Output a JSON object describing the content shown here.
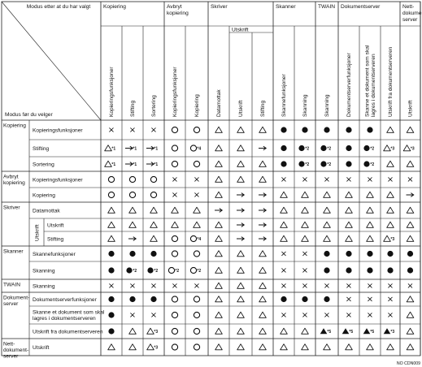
{
  "header": {
    "corner_top": "Modus etter at du har valgt",
    "corner_bottom": "Modus før du velger",
    "groups": [
      {
        "id": "kop",
        "label_lines": [
          "Kopiering"
        ]
      },
      {
        "id": "avb",
        "label_lines": [
          "Avbryt",
          "kopiering"
        ]
      },
      {
        "id": "skr",
        "label_lines": [
          "Skriver"
        ],
        "sub": "Utskrift"
      },
      {
        "id": "ska",
        "label_lines": [
          "Skanner"
        ]
      },
      {
        "id": "twa",
        "label_lines": [
          "TWAIN"
        ]
      },
      {
        "id": "dok",
        "label_lines": [
          "Dokumentserver"
        ]
      },
      {
        "id": "net",
        "label_lines": [
          "Nett-",
          "dokument-",
          "server"
        ]
      }
    ],
    "columns": [
      {
        "lines": [
          "Kopieringsfunksjoner"
        ]
      },
      {
        "lines": [
          "Stifting"
        ]
      },
      {
        "lines": [
          "Sortering"
        ]
      },
      {
        "lines": [
          "Kopieringsfunksjoner"
        ]
      },
      {
        "lines": [
          "Kopiering"
        ]
      },
      {
        "lines": [
          "Datamottak"
        ]
      },
      {
        "lines": [
          "Utskrift"
        ]
      },
      {
        "lines": [
          "Stifting"
        ]
      },
      {
        "lines": [
          "Skannefunksjoner"
        ]
      },
      {
        "lines": [
          "Skanning"
        ]
      },
      {
        "lines": [
          "Skanning"
        ]
      },
      {
        "lines": [
          "Dokumentserverfunksjoner"
        ]
      },
      {
        "lines": [
          "Skanne et dokument som skal",
          "lagres i dokumentserveren"
        ]
      },
      {
        "lines": [
          "Utskrift fra dokumentserveren"
        ]
      },
      {
        "lines": [
          "Utskrift"
        ]
      }
    ]
  },
  "rows": [
    {
      "group": "Kopiering",
      "sub": "",
      "label": [
        "Kopieringsfunksjoner"
      ],
      "cells": [
        "x",
        "x",
        "x",
        "o",
        "o",
        "a",
        "a",
        "a",
        "d",
        "d",
        "d",
        "d",
        "d",
        "a",
        "a"
      ],
      "sups": {}
    },
    {
      "group": "",
      "sub": "",
      "label": [
        "Stifting"
      ],
      "cells": [
        "a",
        "r",
        "r",
        "o",
        "o",
        "a",
        "a",
        "r",
        "d",
        "d",
        "d",
        "d",
        "d",
        "a",
        "a"
      ],
      "sups": {
        "0": "*1",
        "1": "*1",
        "2": "*1",
        "4": "*4",
        "9": "*2",
        "10": "*2",
        "12": "*2",
        "13": "*3",
        "14": "*3"
      }
    },
    {
      "group": "",
      "sub": "",
      "label": [
        "Sortering"
      ],
      "cells": [
        "a",
        "r",
        "r",
        "o",
        "o",
        "a",
        "a",
        "a",
        "d",
        "d",
        "d",
        "d",
        "d",
        "a",
        "a"
      ],
      "sups": {
        "0": "*1",
        "1": "*1",
        "2": "*1",
        "9": "*2",
        "10": "*2",
        "12": "*2"
      }
    },
    {
      "group": "Avbryt kopiering",
      "sub": "",
      "label": [
        "Kopieringsfunksjoner"
      ],
      "cells": [
        "o",
        "o",
        "o",
        "x",
        "x",
        "a",
        "a",
        "a",
        "x",
        "x",
        "x",
        "x",
        "x",
        "x",
        "x"
      ],
      "sups": {}
    },
    {
      "group": "",
      "sub": "",
      "label": [
        "Kopiering"
      ],
      "cells": [
        "o",
        "o",
        "o",
        "x",
        "x",
        "a",
        "r",
        "r",
        "a",
        "a",
        "a",
        "a",
        "a",
        "a",
        "r"
      ],
      "sups": {}
    },
    {
      "group": "Skriver",
      "sub": "",
      "label": [
        "Datamottak"
      ],
      "cells": [
        "a",
        "a",
        "a",
        "a",
        "a",
        "r",
        "r",
        "r",
        "a",
        "a",
        "a",
        "a",
        "a",
        "a",
        "a"
      ],
      "sups": {}
    },
    {
      "group": "",
      "sub": "Utskrift",
      "label": [
        "Utskrift"
      ],
      "cells": [
        "a",
        "a",
        "a",
        "a",
        "a",
        "a",
        "r",
        "r",
        "a",
        "a",
        "a",
        "a",
        "a",
        "a",
        "a"
      ],
      "sups": {}
    },
    {
      "group": "",
      "sub": "",
      "label": [
        "Stifting"
      ],
      "cells": [
        "a",
        "r",
        "a",
        "o",
        "o",
        "a",
        "r",
        "r",
        "a",
        "a",
        "a",
        "a",
        "a",
        "a",
        "a"
      ],
      "sups": {
        "4": "*4",
        "13": "*3"
      }
    },
    {
      "group": "Skanner",
      "sub": "",
      "label": [
        "Skannefunksjoner"
      ],
      "cells": [
        "d",
        "d",
        "d",
        "o",
        "o",
        "a",
        "a",
        "a",
        "x",
        "x",
        "d",
        "d",
        "d",
        "d",
        "d"
      ],
      "sups": {}
    },
    {
      "group": "",
      "sub": "",
      "label": [
        "Skanning"
      ],
      "cells": [
        "d",
        "d",
        "d",
        "o",
        "o",
        "a",
        "a",
        "a",
        "x",
        "x",
        "d",
        "d",
        "d",
        "d",
        "d"
      ],
      "sups": {
        "1": "*2",
        "2": "*2",
        "3": "*2",
        "4": "*2"
      }
    },
    {
      "group": "TWAIN",
      "sub": "",
      "label": [
        "Skanning"
      ],
      "cells": [
        "x",
        "x",
        "x",
        "x",
        "x",
        "a",
        "a",
        "a",
        "x",
        "x",
        "x",
        "x",
        "x",
        "x",
        "x"
      ],
      "sups": {}
    },
    {
      "group": "Dokument-server",
      "sub": "",
      "label": [
        "Dokumentserverfunksjoner"
      ],
      "cells": [
        "d",
        "d",
        "d",
        "o",
        "o",
        "a",
        "a",
        "a",
        "d",
        "d",
        "d",
        "x",
        "x",
        "x",
        "a"
      ],
      "sups": {}
    },
    {
      "group": "",
      "sub": "",
      "label": [
        "Skanne et dokument som skal",
        "lagres i dokumentserveren"
      ],
      "cells": [
        "d",
        "x",
        "x",
        "o",
        "o",
        "a",
        "a",
        "a",
        "x",
        "x",
        "x",
        "x",
        "x",
        "x",
        "a"
      ],
      "sups": {}
    },
    {
      "group": "",
      "sub": "",
      "label": [
        "Utskrift fra dokumentserveren"
      ],
      "cells": [
        "d",
        "a",
        "a",
        "o",
        "o",
        "a",
        "a",
        "a",
        "a",
        "a",
        "e",
        "e",
        "e",
        "e",
        "a"
      ],
      "sups": {
        "2": "*3",
        "10": "*5",
        "11": "*5",
        "12": "*5",
        "13": "*3"
      }
    },
    {
      "group": "Nett-dokument-server",
      "sub": "",
      "label": [
        "Utskrift"
      ],
      "cells": [
        "a",
        "a",
        "a",
        "o",
        "o",
        "a",
        "a",
        "a",
        "a",
        "a",
        "a",
        "a",
        "a",
        "a",
        "a"
      ],
      "sups": {
        "2": "*3"
      }
    }
  ],
  "left_groups": [
    {
      "lines": [
        "Kopiering"
      ],
      "row_start": 0,
      "row_span": 3
    },
    {
      "lines": [
        "Avbryt",
        "kopiering"
      ],
      "row_start": 3,
      "row_span": 2
    },
    {
      "lines": [
        "Skriver"
      ],
      "row_start": 5,
      "row_span": 3
    },
    {
      "lines": [
        "Skanner"
      ],
      "row_start": 8,
      "row_span": 2
    },
    {
      "lines": [
        "TWAIN"
      ],
      "row_start": 10,
      "row_span": 1
    },
    {
      "lines": [
        "Dokument-",
        "server"
      ],
      "row_start": 11,
      "row_span": 3
    },
    {
      "lines": [
        "Nett-",
        "dokument-",
        "server"
      ],
      "row_start": 14,
      "row_span": 1
    }
  ],
  "left_sub": {
    "text": "Utskrift",
    "row_start": 6,
    "row_span": 2
  },
  "footer_code": "NO CDN009"
}
